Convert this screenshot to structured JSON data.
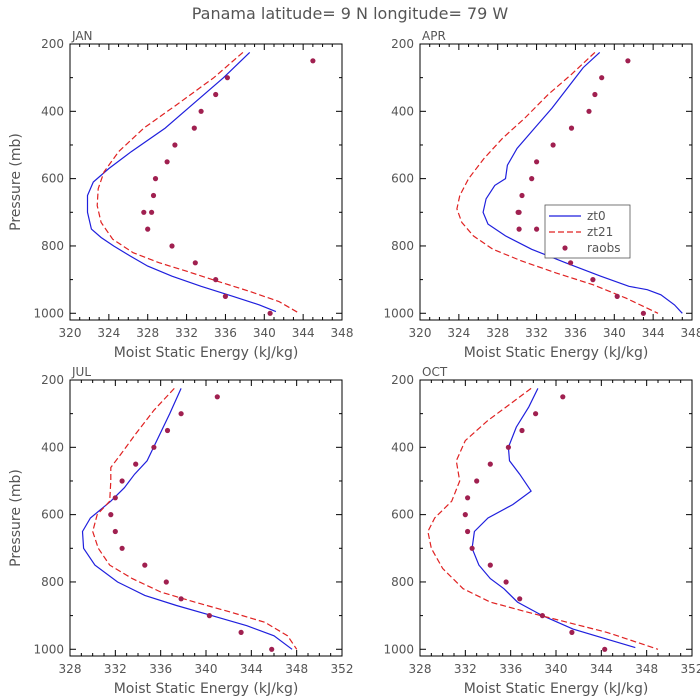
{
  "figure": {
    "title": "Panama  latitude= 9 N longitude= 79 W"
  },
  "legend": {
    "entries": [
      "zt0",
      "zt21",
      "raobs"
    ]
  },
  "colors": {
    "zt0": "#1f1fdd",
    "zt21": "#e02222",
    "raobs": "#a02050",
    "frame": "#000000",
    "text": "#555555"
  },
  "chart_data": [
    {
      "type": "line",
      "panel": "JAN",
      "title": "JAN",
      "xlabel": "Moist Static Energy (kJ/kg)",
      "ylabel": "Pressure (mb)",
      "xlim": [
        320,
        348
      ],
      "ylim": [
        1020,
        200
      ],
      "xticks": [
        320,
        324,
        328,
        332,
        336,
        340,
        344,
        348
      ],
      "yticks": [
        200,
        400,
        600,
        800,
        1000
      ],
      "series": [
        {
          "name": "zt0",
          "style": "solid",
          "x": [
            338.5,
            335.8,
            332.6,
            329.8,
            326.3,
            324.0,
            322.4,
            321.8,
            321.8,
            322.2,
            323.2,
            324.5,
            326.2,
            328.0,
            330.5,
            333.5,
            336.8,
            339.5,
            341.2
          ],
          "y": [
            225,
            300,
            380,
            450,
            520,
            570,
            610,
            650,
            700,
            750,
            775,
            800,
            830,
            860,
            890,
            920,
            950,
            975,
            995
          ]
        },
        {
          "name": "zt21",
          "style": "dashed",
          "x": [
            337.8,
            334.8,
            331.0,
            327.6,
            325.0,
            323.5,
            322.9,
            322.8,
            323.2,
            324.4,
            326.5,
            329.2,
            332.0,
            335.2,
            338.5,
            341.5,
            343.6
          ],
          "y": [
            225,
            300,
            380,
            450,
            520,
            580,
            630,
            680,
            730,
            780,
            820,
            850,
            875,
            905,
            935,
            965,
            1000
          ]
        }
      ],
      "points": {
        "name": "raobs",
        "x": [
          345.0,
          336.2,
          335.0,
          333.5,
          332.8,
          330.8,
          330.0,
          328.8,
          328.6,
          328.4,
          327.6,
          328.0,
          330.5,
          332.9,
          335.0,
          336.0,
          340.6
        ],
        "y": [
          250,
          300,
          350,
          400,
          450,
          500,
          550,
          600,
          650,
          700,
          700,
          750,
          800,
          850,
          900,
          950,
          1000
        ]
      }
    },
    {
      "type": "line",
      "panel": "APR",
      "title": "APR",
      "xlabel": "Moist Static Energy (kJ/kg)",
      "ylabel": "",
      "xlim": [
        320,
        348
      ],
      "ylim": [
        1020,
        200
      ],
      "xticks": [
        320,
        324,
        328,
        332,
        336,
        340,
        344,
        348
      ],
      "yticks": [
        200,
        400,
        600,
        800,
        1000
      ],
      "series": [
        {
          "name": "zt0",
          "style": "solid",
          "x": [
            338.5,
            336.8,
            335.2,
            333.6,
            331.8,
            330.0,
            329.0,
            328.8,
            327.7,
            326.8,
            326.5,
            327.0,
            328.8,
            331.5,
            335.0,
            338.6,
            341.5,
            343.4,
            344.8,
            346.2,
            347.0
          ],
          "y": [
            225,
            270,
            330,
            390,
            450,
            510,
            560,
            600,
            620,
            660,
            700,
            735,
            770,
            810,
            850,
            890,
            920,
            930,
            945,
            975,
            1000
          ]
        },
        {
          "name": "zt21",
          "style": "dashed",
          "x": [
            338.0,
            335.6,
            333.2,
            330.8,
            328.5,
            326.6,
            325.0,
            324.1,
            323.8,
            324.3,
            325.5,
            327.5,
            330.5,
            334.0,
            337.8,
            341.2,
            344.5
          ],
          "y": [
            225,
            290,
            350,
            420,
            480,
            540,
            600,
            650,
            690,
            730,
            770,
            810,
            845,
            880,
            915,
            955,
            1000
          ]
        }
      ],
      "points": {
        "name": "raobs",
        "x": [
          341.4,
          338.7,
          338.0,
          337.4,
          335.6,
          333.7,
          332.0,
          331.5,
          330.5,
          330.2,
          330.1,
          330.2,
          332.0,
          334.2,
          335.3,
          335.5,
          337.8,
          340.3,
          343.0
        ],
        "y": [
          250,
          300,
          350,
          400,
          450,
          500,
          550,
          600,
          650,
          700,
          700,
          750,
          750,
          800,
          825,
          850,
          900,
          950,
          1000
        ]
      }
    },
    {
      "type": "line",
      "panel": "JUL",
      "title": "JUL",
      "xlabel": "Moist Static Energy (kJ/kg)",
      "ylabel": "Pressure (mb)",
      "xlim": [
        328,
        352
      ],
      "ylim": [
        1020,
        200
      ],
      "xticks": [
        328,
        332,
        336,
        340,
        344,
        348,
        352
      ],
      "yticks": [
        200,
        400,
        600,
        800,
        1000
      ],
      "series": [
        {
          "name": "zt0",
          "style": "solid",
          "x": [
            337.8,
            336.8,
            335.8,
            334.8,
            333.7,
            332.8,
            331.6,
            329.8,
            329.1,
            329.2,
            330.2,
            332.2,
            334.6,
            337.4,
            340.5,
            343.6,
            346.0,
            347.6
          ],
          "y": [
            225,
            300,
            370,
            440,
            480,
            520,
            560,
            610,
            650,
            700,
            750,
            800,
            840,
            870,
            900,
            930,
            960,
            1000
          ]
        },
        {
          "name": "zt21",
          "style": "dashed",
          "x": [
            337.2,
            335.4,
            333.8,
            332.5,
            331.6,
            331.6,
            331.5,
            330.4,
            330.0,
            330.5,
            331.5,
            333.5,
            336.0,
            339.0,
            342.2,
            345.2,
            347.2,
            348.0
          ],
          "y": [
            225,
            290,
            360,
            420,
            460,
            500,
            560,
            600,
            650,
            700,
            750,
            790,
            830,
            860,
            890,
            920,
            960,
            1000
          ]
        }
      ],
      "points": {
        "name": "raobs",
        "x": [
          341.0,
          337.8,
          336.6,
          335.4,
          333.8,
          332.6,
          332.0,
          331.6,
          332.0,
          332.6,
          334.6,
          336.5,
          337.8,
          340.3,
          343.1,
          345.8
        ],
        "y": [
          250,
          300,
          350,
          400,
          450,
          500,
          550,
          600,
          650,
          700,
          750,
          800,
          850,
          900,
          950,
          1000
        ]
      }
    },
    {
      "type": "line",
      "panel": "OCT",
      "title": "OCT",
      "xlabel": "Moist Static Energy (kJ/kg)",
      "ylabel": "",
      "xlim": [
        328,
        352
      ],
      "ylim": [
        1020,
        200
      ],
      "xticks": [
        328,
        332,
        336,
        340,
        344,
        348,
        352
      ],
      "yticks": [
        200,
        400,
        600,
        800,
        1000
      ],
      "series": [
        {
          "name": "zt0",
          "style": "solid",
          "x": [
            338.4,
            337.6,
            336.5,
            335.8,
            335.9,
            336.8,
            337.8,
            336.2,
            334.0,
            332.8,
            332.6,
            333.2,
            334.2,
            335.4,
            336.6,
            338.8,
            341.5,
            344.5,
            347.0
          ],
          "y": [
            225,
            280,
            340,
            400,
            440,
            480,
            530,
            570,
            610,
            650,
            700,
            750,
            790,
            820,
            860,
            900,
            940,
            970,
            995
          ]
        },
        {
          "name": "zt21",
          "style": "dashed",
          "x": [
            337.8,
            336.0,
            334.0,
            332.0,
            331.2,
            331.5,
            330.8,
            329.3,
            328.7,
            329.0,
            330.0,
            331.8,
            334.2,
            337.5,
            341.0,
            344.5,
            347.2,
            349.0
          ],
          "y": [
            225,
            270,
            320,
            380,
            440,
            500,
            560,
            610,
            650,
            700,
            760,
            820,
            860,
            890,
            920,
            950,
            980,
            1000
          ]
        }
      ],
      "points": {
        "name": "raobs",
        "x": [
          340.6,
          338.2,
          337.0,
          335.8,
          334.2,
          333.0,
          332.2,
          332.0,
          332.2,
          332.6,
          334.2,
          335.6,
          336.8,
          338.8,
          341.4,
          344.3
        ],
        "y": [
          250,
          300,
          350,
          400,
          450,
          500,
          550,
          600,
          650,
          700,
          750,
          800,
          850,
          900,
          950,
          1000
        ]
      }
    }
  ]
}
